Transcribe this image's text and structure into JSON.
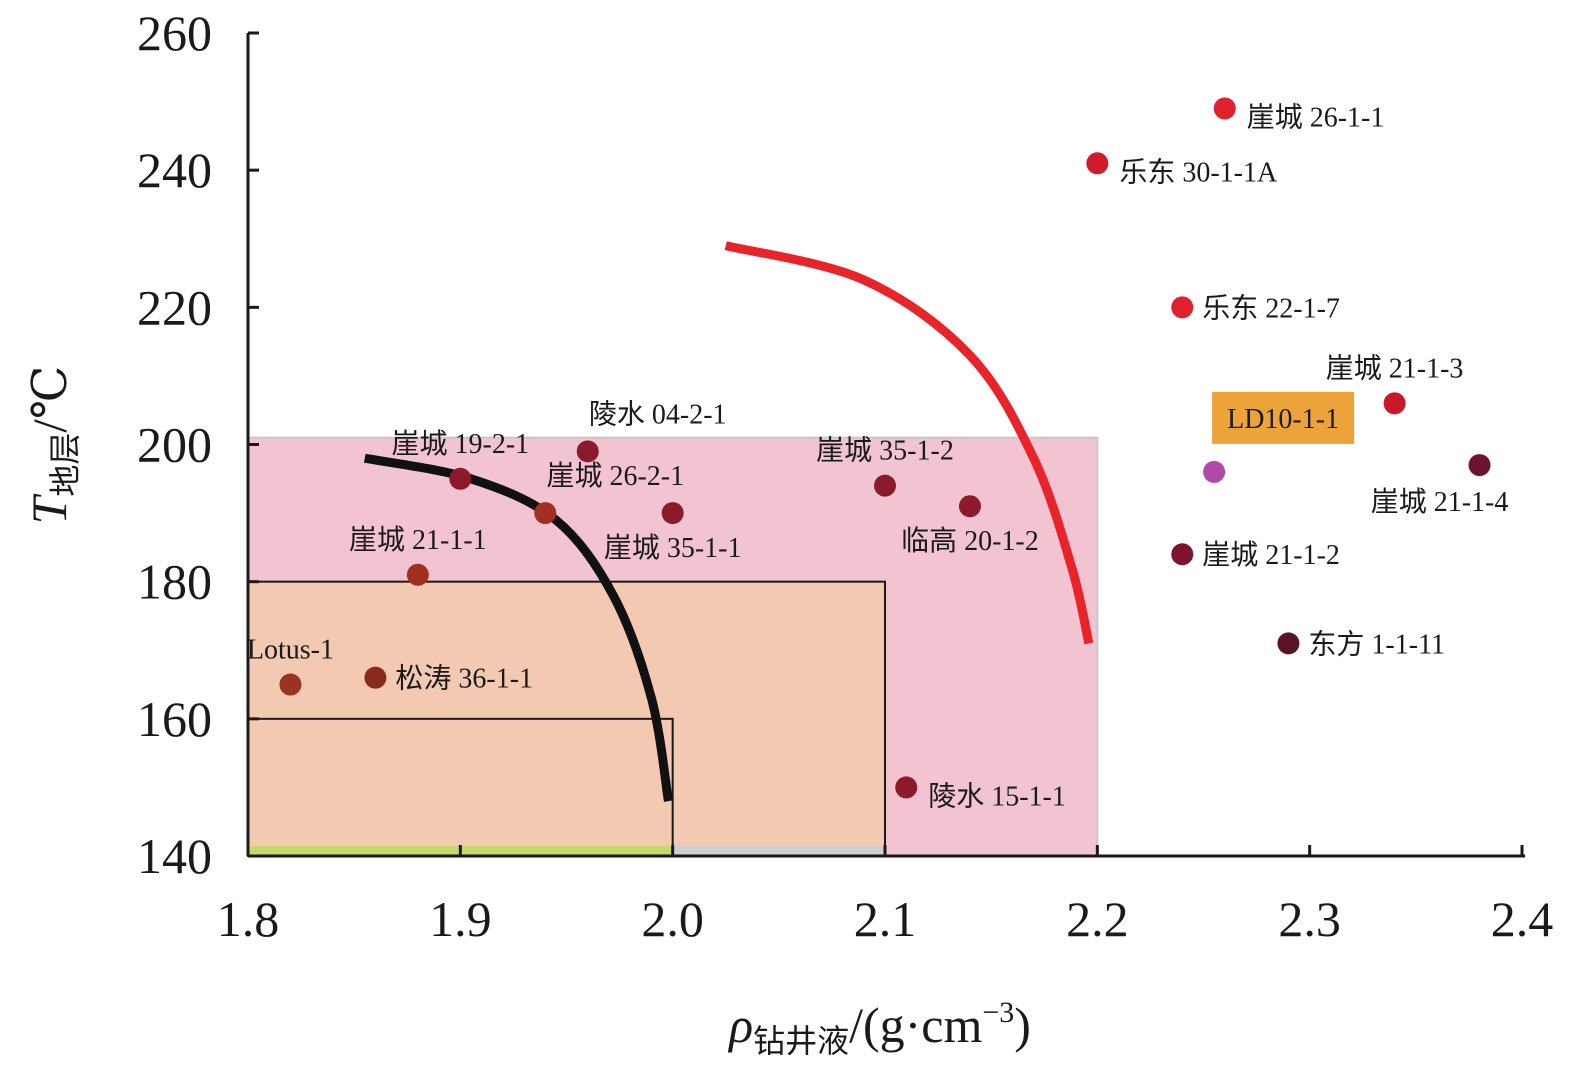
{
  "chart_data": {
    "type": "scatter",
    "xlim": [
      1.8,
      2.4
    ],
    "ylim": [
      140,
      260
    ],
    "x_ticks": [
      "1.8",
      "1.9",
      "2.0",
      "2.1",
      "2.2",
      "2.3",
      "2.4"
    ],
    "y_ticks": [
      "140",
      "160",
      "180",
      "200",
      "220",
      "240",
      "260"
    ],
    "xlabel": {
      "symbol": "ρ",
      "subscript": "钻井液",
      "unit": "/(g·cm",
      "exponent": "−3",
      "close": ")"
    },
    "ylabel": {
      "symbol": "T",
      "subscript": "地层",
      "unit": "/℃"
    },
    "grid": false,
    "regions": [
      {
        "x": [
          1.8,
          2.2
        ],
        "y": [
          140,
          201
        ],
        "fill": "#f2c4d1",
        "frame": "#c8c8c8"
      },
      {
        "x": [
          1.8,
          2.1
        ],
        "y": [
          140,
          180
        ],
        "fill": "#f3c9b1",
        "frame": "#1a1a1a"
      },
      {
        "x": [
          1.8,
          2.0
        ],
        "y": [
          140,
          160
        ],
        "fill": "#f3c9b1",
        "frame": "#1a1a1a"
      }
    ],
    "bottom_bands": [
      {
        "x": [
          1.8,
          2.0
        ],
        "color": "#c7d96a"
      },
      {
        "x": [
          2.0,
          2.1
        ],
        "color": "#cfcfcf"
      }
    ],
    "curves": [
      {
        "color": "#111111",
        "points": [
          [
            1.855,
            198
          ],
          [
            1.905,
            195
          ],
          [
            1.945,
            189
          ],
          [
            1.972,
            178
          ],
          [
            1.99,
            163
          ],
          [
            1.998,
            148
          ]
        ]
      },
      {
        "color": "#e8232a",
        "points": [
          [
            2.025,
            229
          ],
          [
            2.09,
            224
          ],
          [
            2.14,
            213
          ],
          [
            2.17,
            198
          ],
          [
            2.188,
            182
          ],
          [
            2.196,
            171
          ]
        ]
      }
    ],
    "points": [
      {
        "label": "崖城 26-1-1",
        "x": 2.26,
        "y": 249,
        "color": "#e0202d",
        "label_pos": "right-below"
      },
      {
        "label": "乐东 30-1-1A",
        "x": 2.2,
        "y": 241,
        "color": "#d11a2a",
        "label_pos": "right-below"
      },
      {
        "label": "乐东 22-1-7",
        "x": 2.24,
        "y": 220,
        "color": "#e0202d",
        "label_pos": "right"
      },
      {
        "label": "崖城 21-1-3",
        "x": 2.34,
        "y": 206,
        "color": "#c8182a",
        "label_pos": "above"
      },
      {
        "label": "LD10-1-1",
        "x": 2.255,
        "y": 196,
        "color": "#b04aa8",
        "label_pos": "box-above"
      },
      {
        "label": "崖城 21-1-4",
        "x": 2.38,
        "y": 197,
        "color": "#6d1230",
        "label_pos": "below-left"
      },
      {
        "label": "崖城 21-1-2",
        "x": 2.24,
        "y": 184,
        "color": "#801230",
        "label_pos": "right"
      },
      {
        "label": "东方 1-1-11",
        "x": 2.29,
        "y": 171,
        "color": "#5a1226",
        "label_pos": "right"
      },
      {
        "label": "崖城 35-1-2",
        "x": 2.1,
        "y": 194,
        "color": "#8b1b2a",
        "label_pos": "above"
      },
      {
        "label": "临高 20-1-2",
        "x": 2.14,
        "y": 191,
        "color": "#8b1b2a",
        "label_pos": "below"
      },
      {
        "label": "陵水 15-1-1",
        "x": 2.11,
        "y": 150,
        "color": "#8b1b2a",
        "label_pos": "right-below"
      },
      {
        "label": "陵水 04-2-1",
        "x": 1.96,
        "y": 199,
        "color": "#8b1b2a",
        "label_pos": "above-right"
      },
      {
        "label": "崖城 19-2-1",
        "x": 1.9,
        "y": 195,
        "color": "#8b1b2a",
        "label_pos": "above"
      },
      {
        "label": "崖城 26-2-1",
        "x": 1.94,
        "y": 190,
        "color": "#a0301f",
        "label_pos": "above-right"
      },
      {
        "label": "崖城 35-1-1",
        "x": 2.0,
        "y": 190,
        "color": "#8b1b2a",
        "label_pos": "below"
      },
      {
        "label": "崖城 21-1-1",
        "x": 1.88,
        "y": 181,
        "color": "#a0301f",
        "label_pos": "above"
      },
      {
        "label": "Lotus-1",
        "x": 1.82,
        "y": 165,
        "color": "#9b3322",
        "label_pos": "above"
      },
      {
        "label": "松涛 36-1-1",
        "x": 1.86,
        "y": 166,
        "color": "#8a2a1e",
        "label_pos": "right"
      }
    ],
    "label_box_color": "#eca43a"
  }
}
